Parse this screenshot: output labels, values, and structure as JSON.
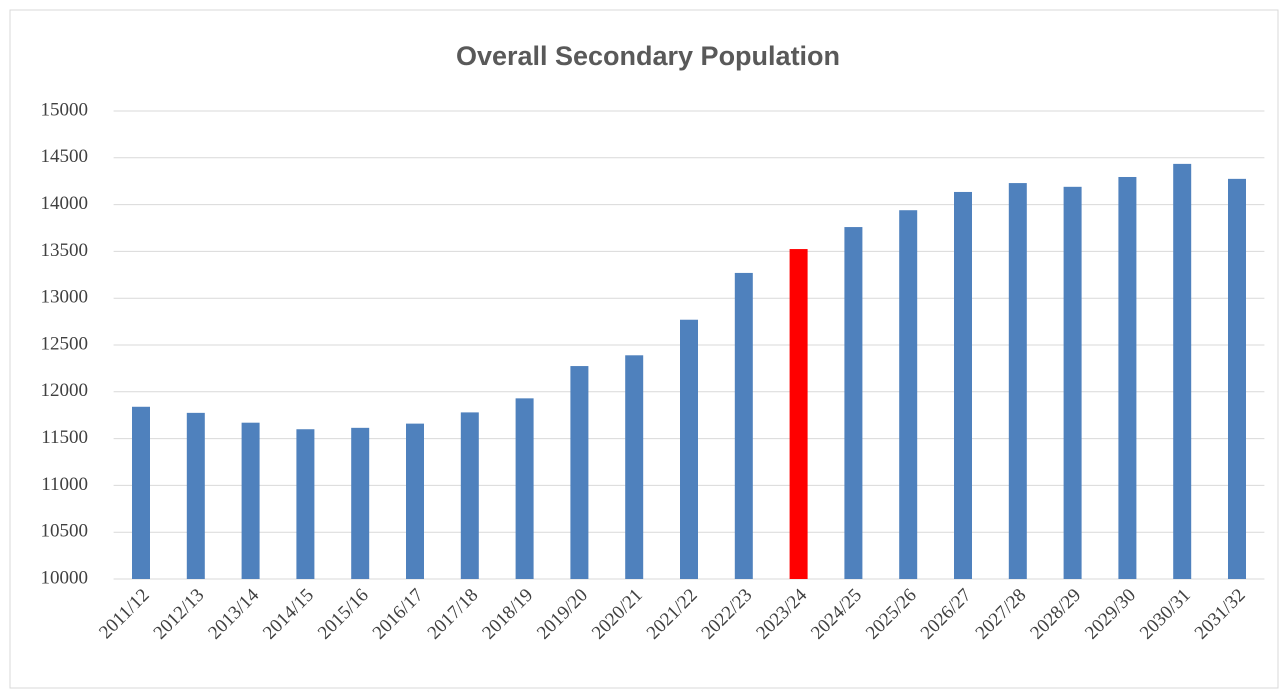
{
  "chart_data": {
    "type": "bar",
    "title": "Overall Secondary Population",
    "categories": [
      "2011/12",
      "2012/13",
      "2013/14",
      "2014/15",
      "2015/16",
      "2016/17",
      "2017/18",
      "2018/19",
      "2019/20",
      "2020/21",
      "2021/22",
      "2022/23",
      "2023/24",
      "2024/25",
      "2025/26",
      "2026/27",
      "2027/28",
      "2028/29",
      "2029/30",
      "2030/31",
      "2031/32"
    ],
    "values": [
      11840,
      11775,
      11670,
      11600,
      11615,
      11660,
      11780,
      11930,
      12275,
      12390,
      12770,
      13270,
      13525,
      13760,
      13940,
      14135,
      14230,
      14190,
      14295,
      14435,
      14275
    ],
    "colors": [
      "#4f81bd",
      "#4f81bd",
      "#4f81bd",
      "#4f81bd",
      "#4f81bd",
      "#4f81bd",
      "#4f81bd",
      "#4f81bd",
      "#4f81bd",
      "#4f81bd",
      "#4f81bd",
      "#4f81bd",
      "#ff0000",
      "#4f81bd",
      "#4f81bd",
      "#4f81bd",
      "#4f81bd",
      "#4f81bd",
      "#4f81bd",
      "#4f81bd",
      "#4f81bd"
    ],
    "ylim": [
      10000,
      15000
    ],
    "yticks": [
      10000,
      10500,
      11000,
      11500,
      12000,
      12500,
      13000,
      13500,
      14000,
      14500,
      15000
    ],
    "grid": true
  }
}
